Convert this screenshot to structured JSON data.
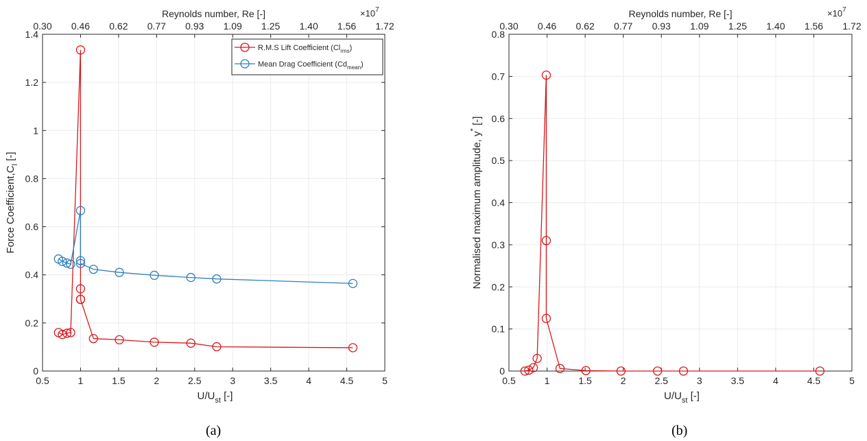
{
  "chart_data": [
    {
      "type": "line",
      "ylabel": "Force Coefficient,C",
      "ylabel_sub": "l",
      "ylabel_tail": " [-]",
      "xlabel": "U/U",
      "xlabel_sub": "st",
      "xlabel_tail": " [-]",
      "top_xlabel": "Reynolds number, Re [-]",
      "top_multiplier_base": "×10",
      "top_multiplier_exp": "7",
      "caption": "(a)",
      "xlim": [
        0.5,
        5
      ],
      "ylim": [
        0,
        1.4
      ],
      "xticks": [
        "0.5",
        "1",
        "1.5",
        "2",
        "2.5",
        "3",
        "3.5",
        "4",
        "4.5",
        "5"
      ],
      "yticks": [
        "0",
        "0.2",
        "0.4",
        "0.6",
        "0.8",
        "1",
        "1.2",
        "1.4"
      ],
      "top_ticks": [
        "0.30",
        "0.46",
        "0.62",
        "0.77",
        "0.93",
        "1.09",
        "1.25",
        "1.40",
        "1.56",
        "1.72"
      ],
      "grid": true,
      "legend_position": "top-right",
      "series": [
        {
          "name": "R.M.S Lift Coefficient (Cl",
          "name_sub": "rms",
          "name_tail": ")",
          "color": "#d7191c",
          "x": [
            0.71,
            0.76,
            0.82,
            0.87,
            1.0,
            1.0,
            1.0,
            1.0,
            1.17,
            1.51,
            1.97,
            2.45,
            2.79,
            4.58
          ],
          "y": [
            0.16,
            0.152,
            0.157,
            0.16,
            1.335,
            0.342,
            0.298,
            0.298,
            0.135,
            0.13,
            0.12,
            0.116,
            0.101,
            0.097
          ]
        },
        {
          "name": "Mean Drag Coefficient (Cd",
          "name_sub": "mean",
          "name_tail": ")",
          "color": "#2e7ebc",
          "x": [
            0.71,
            0.76,
            0.82,
            0.87,
            1.0,
            1.0,
            1.0,
            1.17,
            1.51,
            1.97,
            2.45,
            2.79,
            4.58
          ],
          "y": [
            0.466,
            0.456,
            0.449,
            0.444,
            0.667,
            0.459,
            0.447,
            0.423,
            0.41,
            0.398,
            0.389,
            0.383,
            0.364
          ]
        }
      ]
    },
    {
      "type": "line",
      "ylabel": "Normalised maximum amplitude, y",
      "ylabel_sup": "*",
      "ylabel_tail": " [-]",
      "xlabel": "U/U",
      "xlabel_sub": "st",
      "xlabel_tail": " [-]",
      "top_xlabel": "Reynolds number, Re [-]",
      "top_multiplier_base": "×10",
      "top_multiplier_exp": "7",
      "caption": "(b)",
      "xlim": [
        0.5,
        5
      ],
      "ylim": [
        0,
        0.8
      ],
      "xticks": [
        "0.5",
        "1",
        "1.5",
        "2",
        "2.5",
        "3",
        "3.5",
        "4",
        "4.5",
        "5"
      ],
      "yticks": [
        "0",
        "0.1",
        "0.2",
        "0.3",
        "0.4",
        "0.5",
        "0.6",
        "0.7",
        "0.8"
      ],
      "top_ticks": [
        "0.30",
        "0.46",
        "0.62",
        "0.77",
        "0.93",
        "1.09",
        "1.25",
        "1.40",
        "1.56",
        "1.72"
      ],
      "grid": true,
      "series": [
        {
          "color": "#d7191c",
          "x": [
            0.71,
            0.76,
            0.82,
            0.87,
            0.99,
            0.99,
            0.99,
            1.17,
            1.51,
            1.97,
            2.45,
            2.79,
            4.58
          ],
          "y": [
            0.0,
            0.002,
            0.008,
            0.03,
            0.703,
            0.31,
            0.125,
            0.006,
            0.001,
            0.0,
            0.0,
            0.0,
            0.0
          ]
        }
      ]
    }
  ]
}
